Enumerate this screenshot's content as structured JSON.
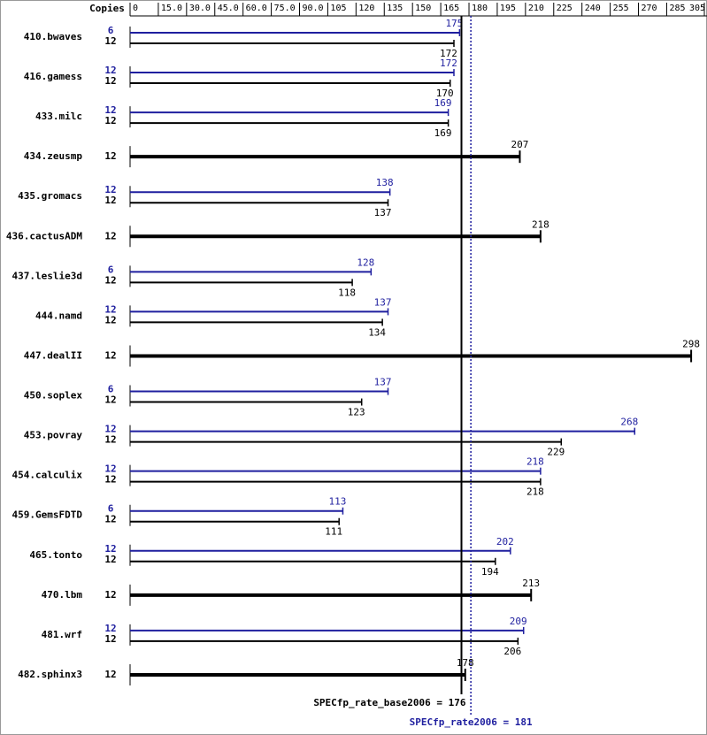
{
  "chart_data": {
    "type": "bar",
    "orientation": "horizontal",
    "copies_label": "Copies",
    "categories": [
      "410.bwaves",
      "416.gamess",
      "433.milc",
      "434.zeusmp",
      "435.gromacs",
      "436.cactusADM",
      "437.leslie3d",
      "444.namd",
      "447.dealII",
      "450.soplex",
      "453.povray",
      "454.calculix",
      "459.GemsFDTD",
      "465.tonto",
      "470.lbm",
      "481.wrf",
      "482.sphinx3"
    ],
    "series": [
      {
        "color": "#1f1f9f",
        "copies": [
          6,
          12,
          12,
          null,
          12,
          null,
          6,
          12,
          null,
          6,
          12,
          12,
          6,
          12,
          null,
          12,
          null
        ],
        "values": [
          175,
          172,
          169,
          null,
          138,
          null,
          128,
          137,
          null,
          137,
          268,
          218,
          113,
          202,
          null,
          209,
          null
        ]
      },
      {
        "color": "#000000",
        "copies": [
          12,
          12,
          12,
          12,
          12,
          12,
          12,
          12,
          12,
          12,
          12,
          12,
          12,
          12,
          12,
          12,
          12
        ],
        "values": [
          172,
          170,
          169,
          207,
          137,
          218,
          118,
          134,
          298,
          123,
          229,
          218,
          111,
          194,
          213,
          206,
          178
        ]
      }
    ],
    "xlim": [
      0,
      305
    ],
    "xticks": [
      0,
      {
        "value": 15,
        "label": "15.0"
      },
      {
        "value": 30,
        "label": "30.0"
      },
      {
        "value": 45,
        "label": "45.0"
      },
      {
        "value": 60,
        "label": "60.0"
      },
      {
        "value": 75,
        "label": "75.0"
      },
      {
        "value": 90,
        "label": "90.0"
      },
      105,
      120,
      135,
      150,
      165,
      180,
      195,
      210,
      225,
      240,
      255,
      270,
      285,
      305
    ],
    "references": [
      {
        "label": "SPECfp_rate_base2006 = 176",
        "value": 176,
        "color": "#000000",
        "dashed": false
      },
      {
        "label": "SPECfp_rate2006 = 181",
        "value": 181,
        "color": "#1f1f9f",
        "dashed": true
      }
    ]
  }
}
